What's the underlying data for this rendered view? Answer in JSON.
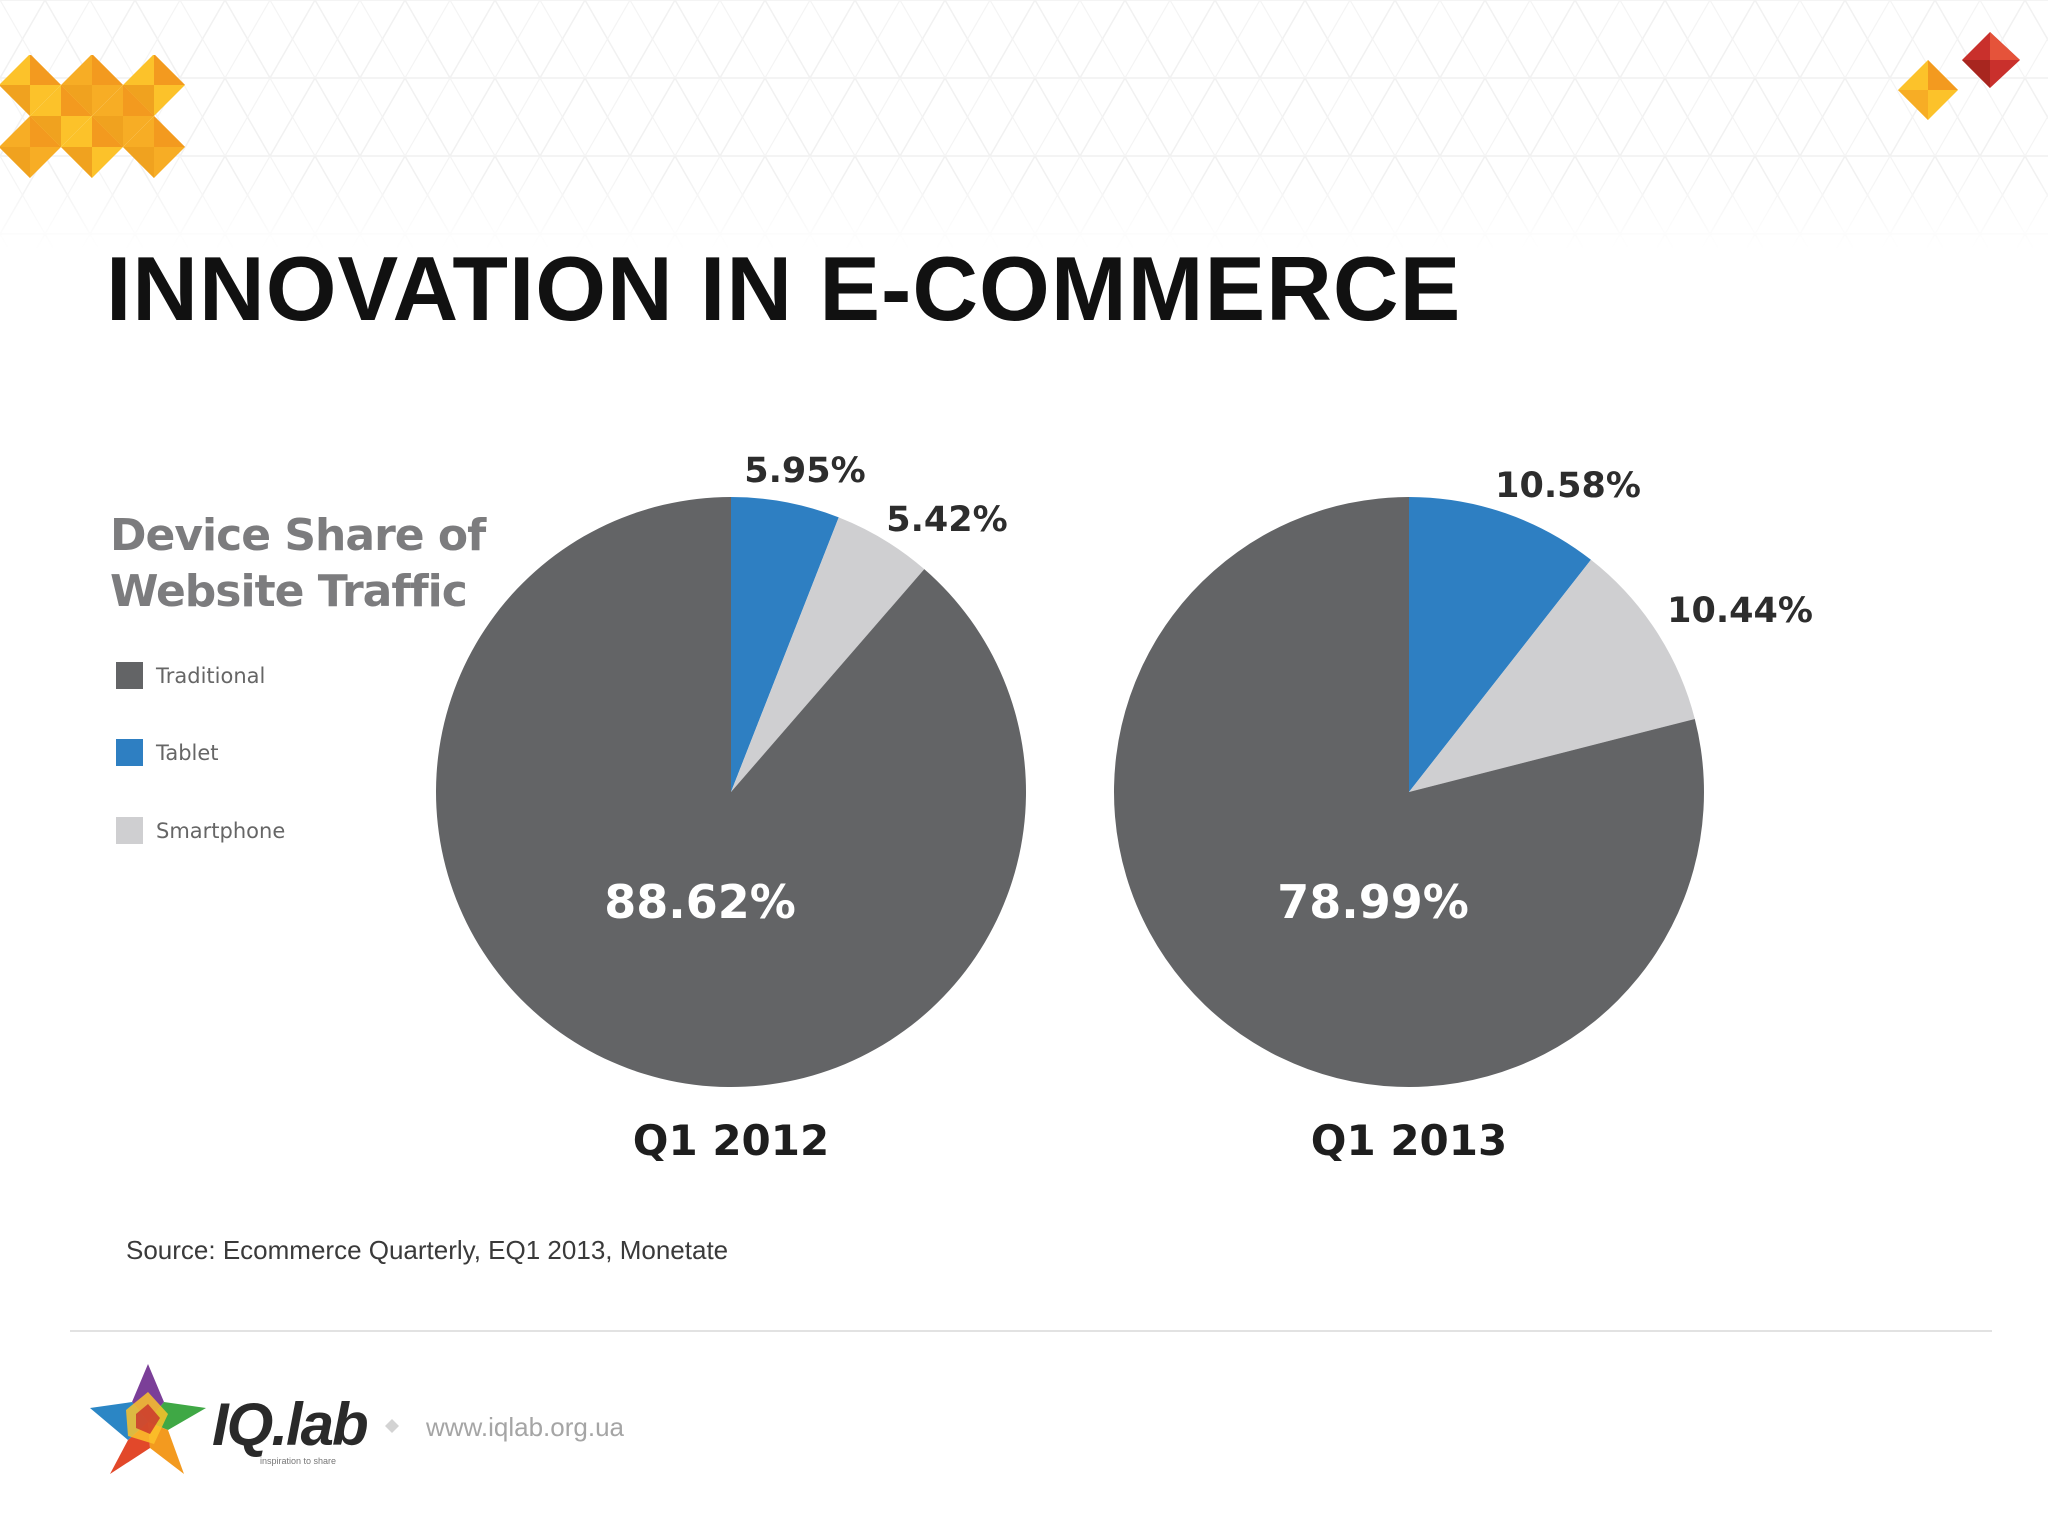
{
  "slide": {
    "title": "INNOVATION IN E-COMMERCE",
    "source": "Source: Ecommerce Quarterly, EQ1 2013, Monetate"
  },
  "footer": {
    "brand": "IQ.lab",
    "tagline": "inspiration to share",
    "url": "www.iqlab.org.ua"
  },
  "colors": {
    "traditional": "#636466",
    "tablet": "#2e7fc2",
    "smartphone": "#cfcfd1",
    "accent_orange": "#f39a1f",
    "accent_yellow": "#fcc22a",
    "accent_red": "#c9302c"
  },
  "chart_data": [
    {
      "type": "pie",
      "title": "Q1 2012",
      "legend_title": [
        "Device Share of",
        "Website Traffic"
      ],
      "legend_placement": "left",
      "slices": [
        {
          "name": "Tablet",
          "value": 5.95,
          "label": "5.95%",
          "color": "#2e7fc2"
        },
        {
          "name": "Smartphone",
          "value": 5.42,
          "label": "5.42%",
          "color": "#cfcfd1"
        },
        {
          "name": "Traditional",
          "value": 88.62,
          "label": "88.62%",
          "color": "#636466"
        }
      ]
    },
    {
      "type": "pie",
      "title": "Q1 2013",
      "legend_title": [
        "Device Share of",
        "Website Traffic"
      ],
      "legend_placement": "left",
      "slices": [
        {
          "name": "Tablet",
          "value": 10.58,
          "label": "10.58%",
          "color": "#2e7fc2"
        },
        {
          "name": "Smartphone",
          "value": 10.44,
          "label": "10.44%",
          "color": "#cfcfd1"
        },
        {
          "name": "Traditional",
          "value": 78.99,
          "label": "78.99%",
          "color": "#636466"
        }
      ]
    }
  ],
  "legend": {
    "title_lines": [
      "Device Share of",
      "Website Traffic"
    ],
    "items": [
      "Traditional",
      "Tablet",
      "Smartphone"
    ]
  }
}
